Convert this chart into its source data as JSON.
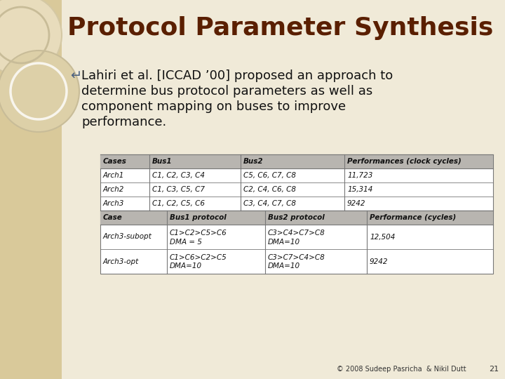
{
  "title": "Protocol Parameter Synthesis",
  "title_color": "#5a1f00",
  "slide_bg": "#f0ead8",
  "left_panel_color": "#d9c99a",
  "bullet_symbol_color": "#4a6080",
  "bullet_text_lines": [
    "Lahiri et al. [ICCAD ’00] proposed an approach to",
    "determine bus protocol parameters as well as",
    "component mapping on buses to improve",
    "performance."
  ],
  "table1_headers": [
    "Cases",
    "Bus1",
    "Bus2",
    "Performances (clock cycles)"
  ],
  "table1_rows": [
    [
      "Arch1",
      "C1, C2, C3, C4",
      "C5, C6, C7, C8",
      "11,723"
    ],
    [
      "Arch2",
      "C1, C3, C5, C7",
      "C2, C4, C6, C8",
      "15,314"
    ],
    [
      "Arch3",
      "C1, C2, C5, C6",
      "C3, C4, C7, C8",
      "9242"
    ]
  ],
  "table2_headers": [
    "Case",
    "Bus1 protocol",
    "Bus2 protocol",
    "Performance (cycles)"
  ],
  "table2_rows": [
    [
      "Arch3-subopt",
      "C1>C2>C5>C6\nDMA = 5",
      "C3>C4>C7>C8\nDMA=10",
      "12,504"
    ],
    [
      "Arch3-opt",
      "C1>C6>C2>C5\nDMA=10",
      "C3>C7>C4>C8\nDMA=10",
      "9242"
    ]
  ],
  "footer_text": "© 2008 Sudeep Pasricha  & Nikil Dutt",
  "page_number": "21",
  "table_header_bg": "#b8b5b0",
  "table_bg": "#ffffff",
  "table_border": "#777777"
}
